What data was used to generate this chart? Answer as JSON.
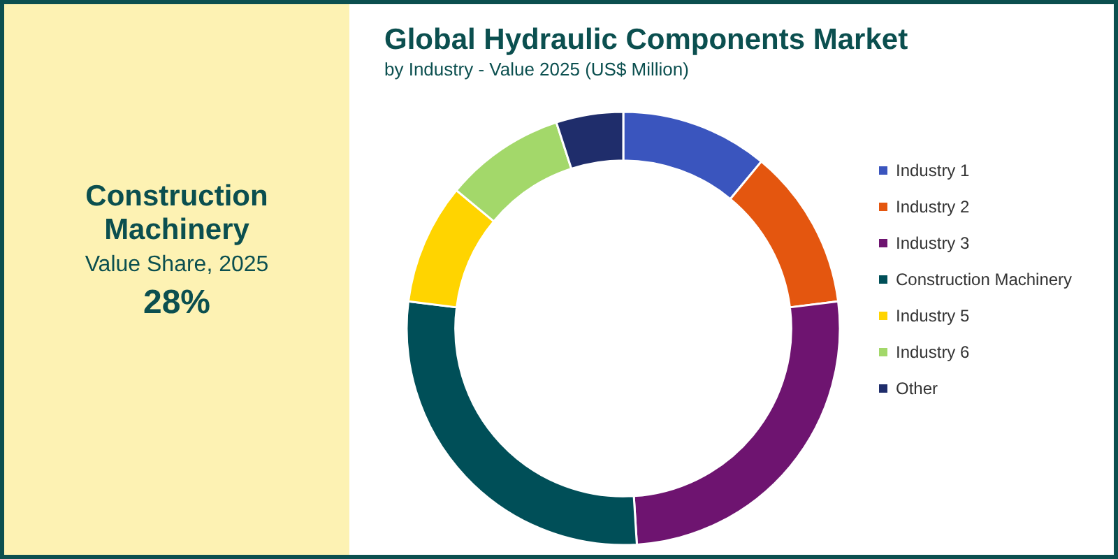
{
  "chart_data": {
    "type": "donut",
    "title": "Global Hydraulic Components Market",
    "subtitle": "by Industry - Value 2025 (US$ Million)",
    "categories": [
      "Industry 1",
      "Industry 2",
      "Industry 3",
      "Construction Machinery",
      "Industry 5",
      "Industry 6",
      "Other"
    ],
    "values": [
      11,
      12,
      26,
      28,
      9,
      9,
      5
    ],
    "colors": [
      "#3a55be",
      "#e4560f",
      "#6e1470",
      "#004f58",
      "#ffd400",
      "#a3d86a",
      "#1f2d6b"
    ],
    "annotations": [
      "Construction Machinery",
      "Value Share, 2025",
      "28%"
    ],
    "legend": "right"
  }
}
